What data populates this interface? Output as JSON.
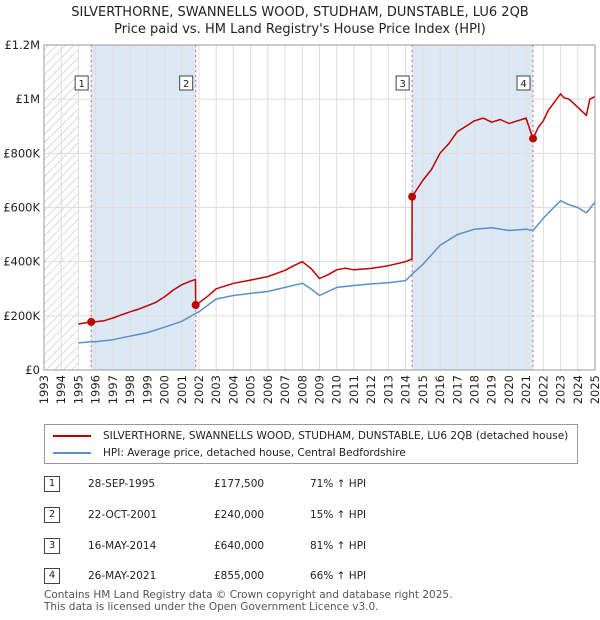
{
  "title_line1": "SILVERTHORNE, SWANNELLS WOOD, STUDHAM, DUNSTABLE, LU6 2QB",
  "title_line2": "Price paid vs. HM Land Registry's House Price Index (HPI)",
  "colors": {
    "price_line": "#c00000",
    "hpi_line": "#5b8fc9",
    "marker_line": "#e06060",
    "shade": "#dde8f5",
    "grid": "#dddddd",
    "hatch": "#bbbbbb"
  },
  "chart_data": {
    "type": "line",
    "title": "Price paid vs. HM Land Registry's House Price Index (HPI)",
    "xlabel": "",
    "ylabel": "",
    "xlim": [
      1993.0,
      2025.0
    ],
    "ylim": [
      0,
      1200000
    ],
    "y_ticks": [
      {
        "value": 0,
        "label": "£0"
      },
      {
        "value": 200000,
        "label": "£200K"
      },
      {
        "value": 400000,
        "label": "£400K"
      },
      {
        "value": 600000,
        "label": "£600K"
      },
      {
        "value": 800000,
        "label": "£800K"
      },
      {
        "value": 1000000,
        "label": "£1M"
      },
      {
        "value": 1200000,
        "label": "£1.2M"
      }
    ],
    "x_ticks": [
      "1993",
      "1994",
      "1995",
      "1996",
      "1997",
      "1998",
      "1999",
      "2000",
      "2001",
      "2002",
      "2003",
      "2004",
      "2005",
      "2006",
      "2007",
      "2008",
      "2009",
      "2010",
      "2011",
      "2012",
      "2013",
      "2014",
      "2015",
      "2016",
      "2017",
      "2018",
      "2019",
      "2020",
      "2021",
      "2022",
      "2023",
      "2024",
      "2025"
    ],
    "hatched_before": 1995.0,
    "series": [
      {
        "name": "SILVERTHORNE, SWANNELLS WOOD, STUDHAM, DUNSTABLE, LU6 2QB (detached house)",
        "x": [
          1995.0,
          1995.74,
          1996.0,
          1996.5,
          1997.0,
          1997.5,
          1998.0,
          1998.5,
          1999.0,
          1999.5,
          2000.0,
          2000.5,
          2001.0,
          2001.5,
          2001.8,
          2001.81,
          2002.0,
          2002.5,
          2003.0,
          2004.0,
          2005.0,
          2006.0,
          2007.0,
          2007.5,
          2008.0,
          2008.5,
          2009.0,
          2009.5,
          2010.0,
          2010.5,
          2011.0,
          2012.0,
          2013.0,
          2014.0,
          2014.37,
          2014.38,
          2015.0,
          2015.5,
          2016.0,
          2016.5,
          2017.0,
          2017.5,
          2018.0,
          2018.5,
          2019.0,
          2019.5,
          2020.0,
          2020.5,
          2021.0,
          2021.39,
          2021.4,
          2021.7,
          2022.0,
          2022.3,
          2022.6,
          2023.0,
          2023.2,
          2023.5,
          2024.0,
          2024.5,
          2024.7,
          2025.0
        ],
        "values": [
          170000,
          177500,
          178000,
          182000,
          192000,
          204000,
          215000,
          225000,
          237000,
          250000,
          270000,
          295000,
          315000,
          328000,
          334000,
          240000,
          248000,
          272000,
          300000,
          320000,
          332000,
          345000,
          368000,
          385000,
          400000,
          375000,
          338000,
          352000,
          370000,
          376000,
          370000,
          375000,
          385000,
          400000,
          410000,
          640000,
          700000,
          740000,
          800000,
          835000,
          880000,
          900000,
          920000,
          930000,
          915000,
          925000,
          910000,
          920000,
          930000,
          855000,
          855000,
          895000,
          920000,
          960000,
          985000,
          1020000,
          1005000,
          1000000,
          970000,
          940000,
          1000000,
          1010000
        ]
      },
      {
        "name": "HPI: Average price, detached house, Central Bedfordshire",
        "x": [
          1995.0,
          1995.74,
          1996.0,
          1997.0,
          1998.0,
          1999.0,
          2000.0,
          2001.0,
          2001.81,
          2002.0,
          2003.0,
          2004.0,
          2005.0,
          2006.0,
          2007.0,
          2008.0,
          2008.5,
          2009.0,
          2009.5,
          2010.0,
          2011.0,
          2012.0,
          2013.0,
          2014.0,
          2014.38,
          2015.0,
          2016.0,
          2017.0,
          2018.0,
          2019.0,
          2020.0,
          2021.0,
          2021.4,
          2022.0,
          2022.6,
          2023.0,
          2023.5,
          2024.0,
          2024.5,
          2025.0
        ],
        "values": [
          100000,
          104000,
          104000,
          112000,
          125000,
          138000,
          158000,
          180000,
          209000,
          215000,
          262000,
          275000,
          283000,
          290000,
          305000,
          320000,
          300000,
          275000,
          290000,
          305000,
          312000,
          318000,
          322000,
          330000,
          354000,
          390000,
          460000,
          500000,
          520000,
          525000,
          515000,
          520000,
          515000,
          560000,
          600000,
          625000,
          610000,
          600000,
          580000,
          620000
        ]
      }
    ],
    "transactions": [
      {
        "num": "1",
        "x": 1995.74,
        "price_value": 177500,
        "date": "28-SEP-1995",
        "price": "£177,500",
        "hpi": "71% ↑ HPI"
      },
      {
        "num": "2",
        "x": 2001.81,
        "price_value": 240000,
        "date": "22-OCT-2001",
        "price": "£240,000",
        "hpi": "15% ↑ HPI"
      },
      {
        "num": "3",
        "x": 2014.38,
        "price_value": 640000,
        "date": "16-MAY-2014",
        "price": "£640,000",
        "hpi": "81% ↑ HPI"
      },
      {
        "num": "4",
        "x": 2021.4,
        "price_value": 855000,
        "date": "26-MAY-2021",
        "price": "£855,000",
        "hpi": "66% ↑ HPI"
      }
    ]
  },
  "legend": {
    "price_label": "SILVERTHORNE, SWANNELLS WOOD, STUDHAM, DUNSTABLE, LU6 2QB (detached house)",
    "hpi_label": "HPI: Average price, detached house, Central Bedfordshire"
  },
  "footer": {
    "line1": "Contains HM Land Registry data © Crown copyright and database right 2025.",
    "line2": "This data is licensed under the Open Government Licence v3.0."
  }
}
